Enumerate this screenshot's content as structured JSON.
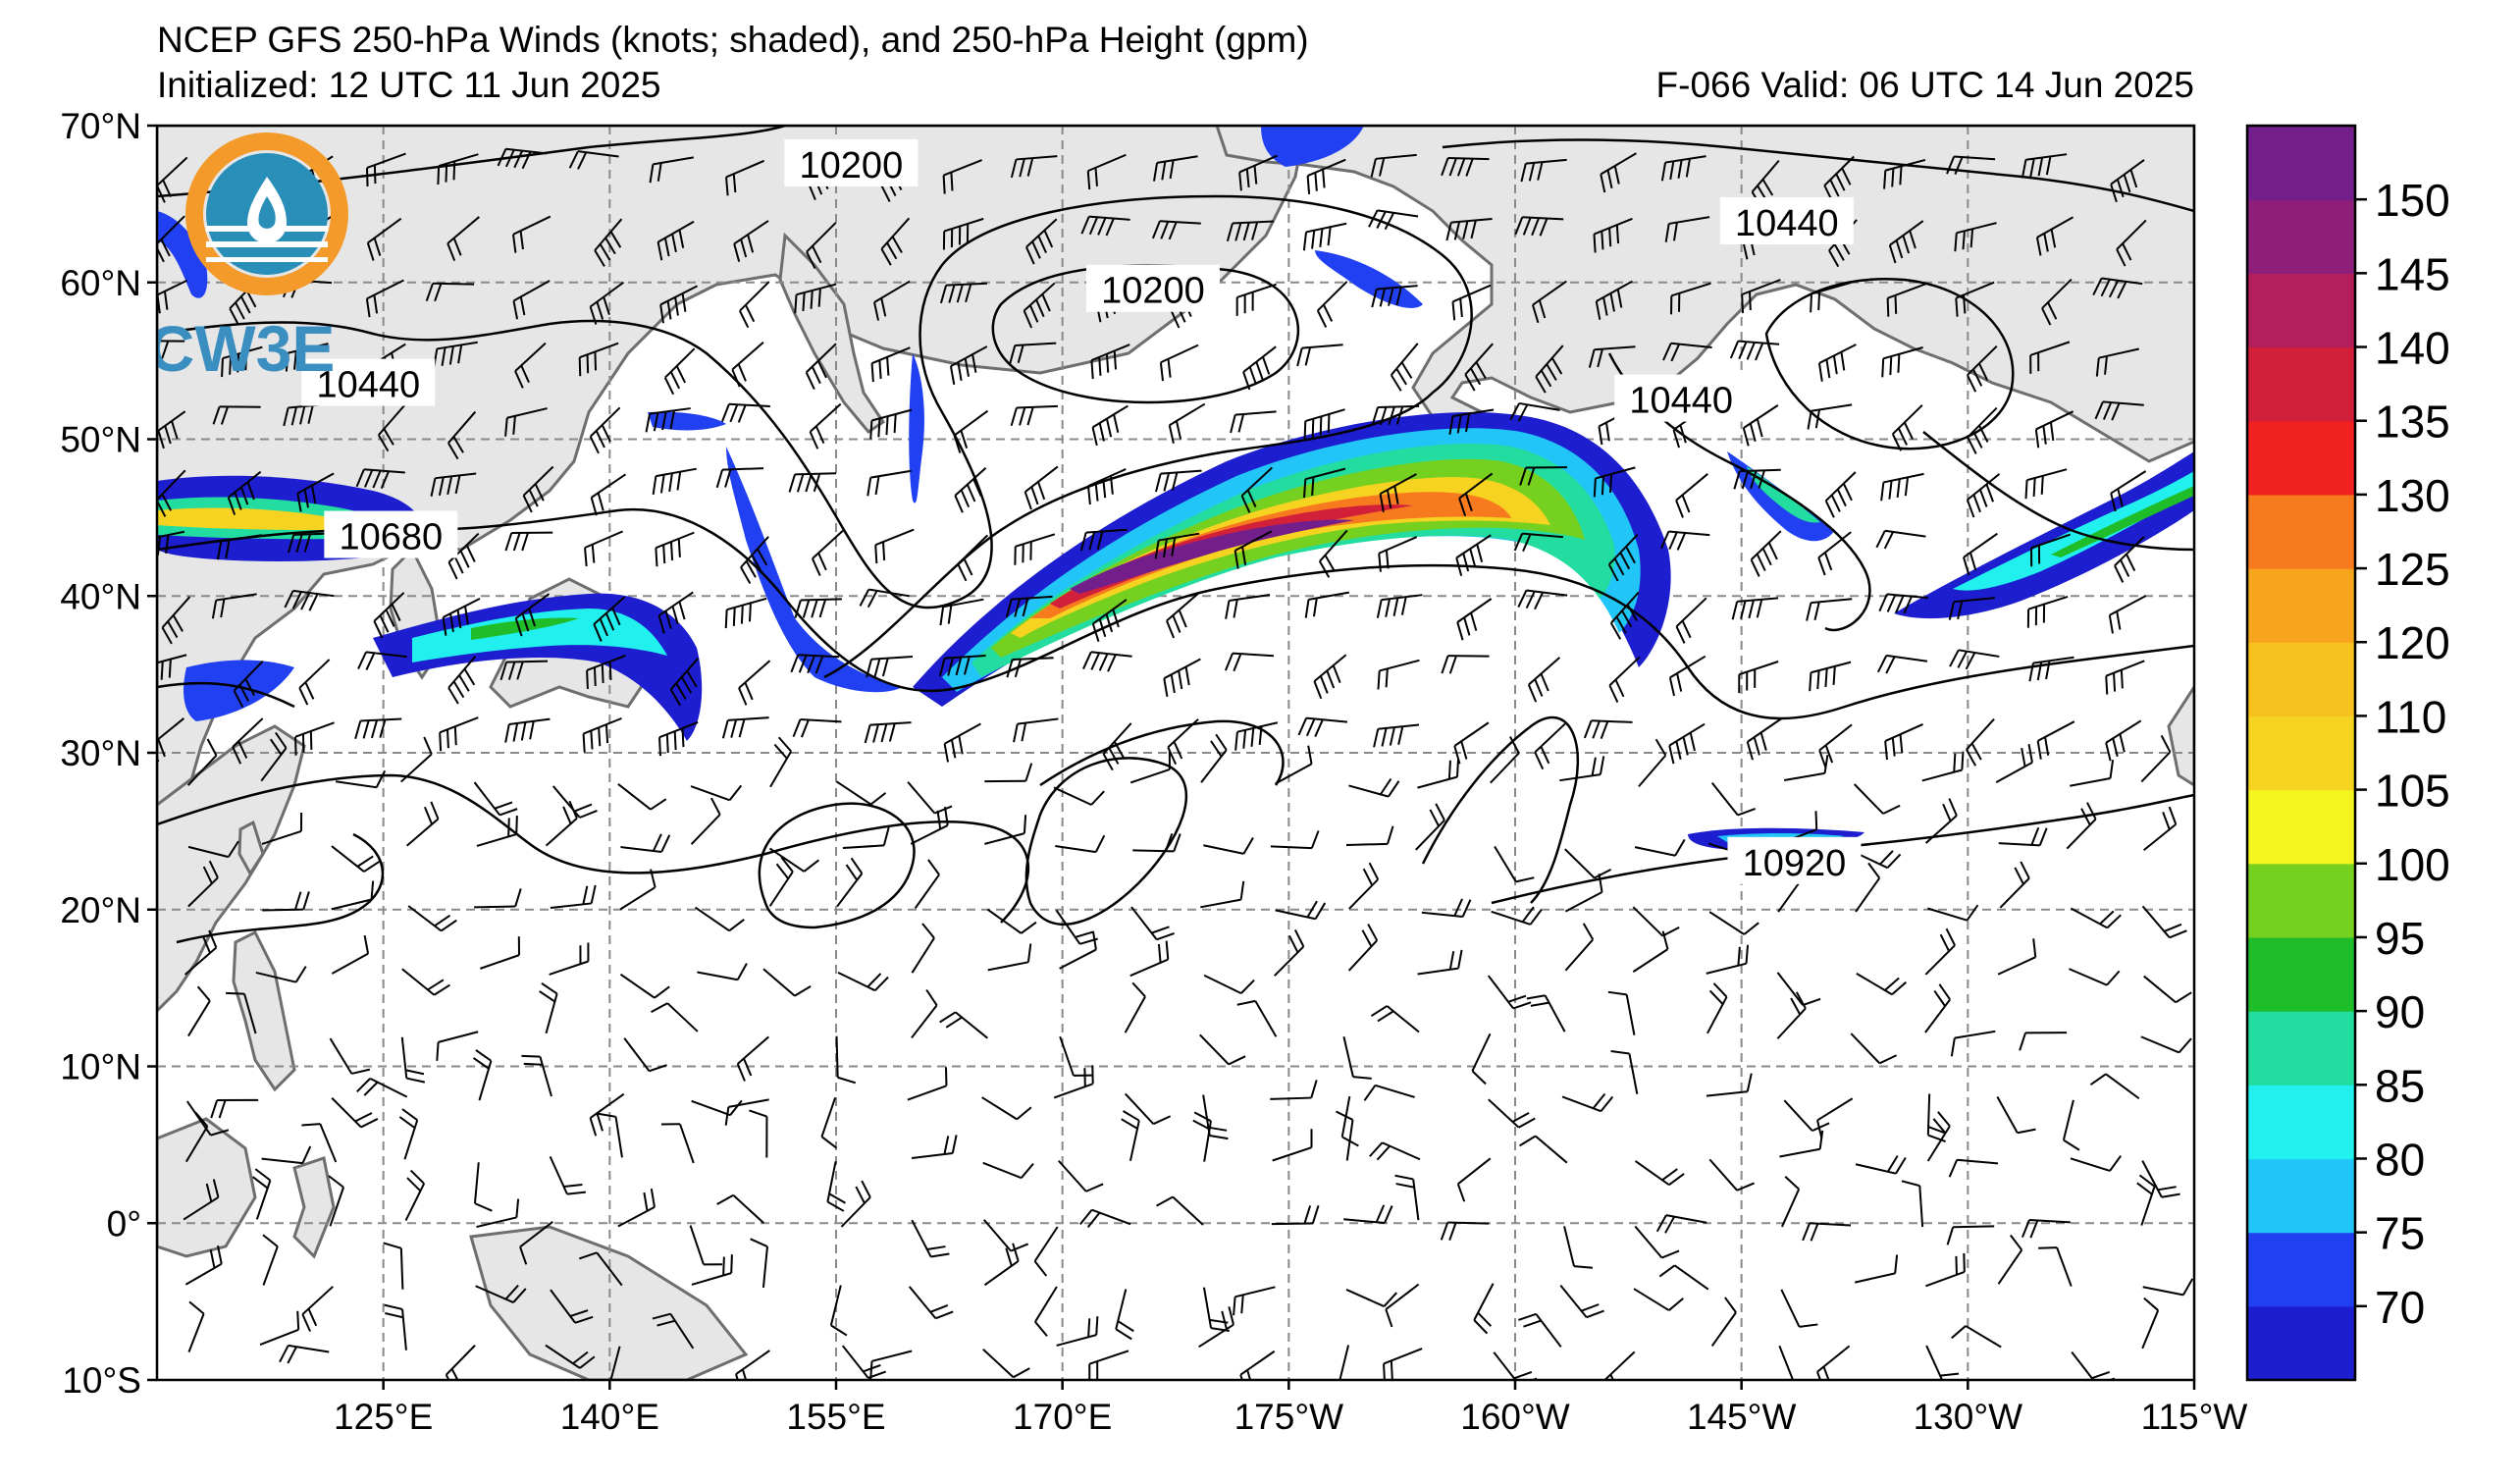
{
  "header": {
    "title": "NCEP GFS 250-hPa Winds (knots; shaded), and 250-hPa Height (gpm)",
    "initialized": "Initialized: 12 UTC 11 Jun 2025",
    "valid": "F-066  Valid: 06 UTC 14 Jun 2025"
  },
  "logo": {
    "text": "CW3E",
    "colors": {
      "ring": "#f39a2a",
      "water": "#2a8fb8",
      "text": "#3b8fc0"
    }
  },
  "map": {
    "lat_range": [
      -10,
      70
    ],
    "lon_range_east": [
      110,
      245
    ],
    "lat_labels": [
      "70°N",
      "60°N",
      "50°N",
      "40°N",
      "30°N",
      "20°N",
      "10°N",
      "0°",
      "10°S"
    ],
    "lat_values": [
      70,
      60,
      50,
      40,
      30,
      20,
      10,
      0,
      -10
    ],
    "lon_labels": [
      "125°E",
      "140°E",
      "155°E",
      "170°E",
      "175°W",
      "160°W",
      "145°W",
      "130°W",
      "115°W"
    ],
    "lon_values": [
      125,
      140,
      155,
      170,
      185,
      200,
      215,
      230,
      245
    ],
    "colors": {
      "land": "#e6e6e6",
      "coast": "#6e6e6e",
      "grid": "#8a8a8a",
      "contour": "#000000"
    },
    "height_labels": [
      {
        "text": "10200",
        "lat": 67.5,
        "lon": 156
      },
      {
        "text": "10200",
        "lat": 59.5,
        "lon": 176
      },
      {
        "text": "10440",
        "lat": 63.8,
        "lon": 218
      },
      {
        "text": "10440",
        "lat": 53.5,
        "lon": 124
      },
      {
        "text": "10440",
        "lat": 52.5,
        "lon": 211
      },
      {
        "text": "10680",
        "lat": 43.8,
        "lon": 125.5
      },
      {
        "text": "10920",
        "lat": 23,
        "lon": 218.5
      }
    ]
  },
  "colorbar": {
    "ticks": [
      "150",
      "145",
      "140",
      "135",
      "130",
      "125",
      "120",
      "110",
      "105",
      "100",
      "95",
      "90",
      "85",
      "80",
      "75",
      "70"
    ],
    "bins": [
      {
        "min": 70,
        "max": 75,
        "color": "#1d1ecf"
      },
      {
        "min": 75,
        "max": 80,
        "color": "#2040f2"
      },
      {
        "min": 80,
        "max": 85,
        "color": "#22c5f7"
      },
      {
        "min": 85,
        "max": 90,
        "color": "#22f0ee"
      },
      {
        "min": 90,
        "max": 95,
        "color": "#22dca0"
      },
      {
        "min": 95,
        "max": 100,
        "color": "#20bd2a"
      },
      {
        "min": 100,
        "max": 105,
        "color": "#76d020"
      },
      {
        "min": 105,
        "max": 110,
        "color": "#f5f520"
      },
      {
        "min": 110,
        "max": 115,
        "color": "#f7d321"
      },
      {
        "min": 115,
        "max": 120,
        "color": "#f7c21f"
      },
      {
        "min": 120,
        "max": 125,
        "color": "#f8a51e"
      },
      {
        "min": 125,
        "max": 130,
        "color": "#f77a1f"
      },
      {
        "min": 130,
        "max": 135,
        "color": "#f22121"
      },
      {
        "min": 135,
        "max": 140,
        "color": "#d2203a"
      },
      {
        "min": 140,
        "max": 145,
        "color": "#b21f5a"
      },
      {
        "min": 145,
        "max": 150,
        "color": "#8d1f7a"
      },
      {
        "min": 150,
        "max": 155,
        "color": "#721f8c"
      }
    ]
  }
}
